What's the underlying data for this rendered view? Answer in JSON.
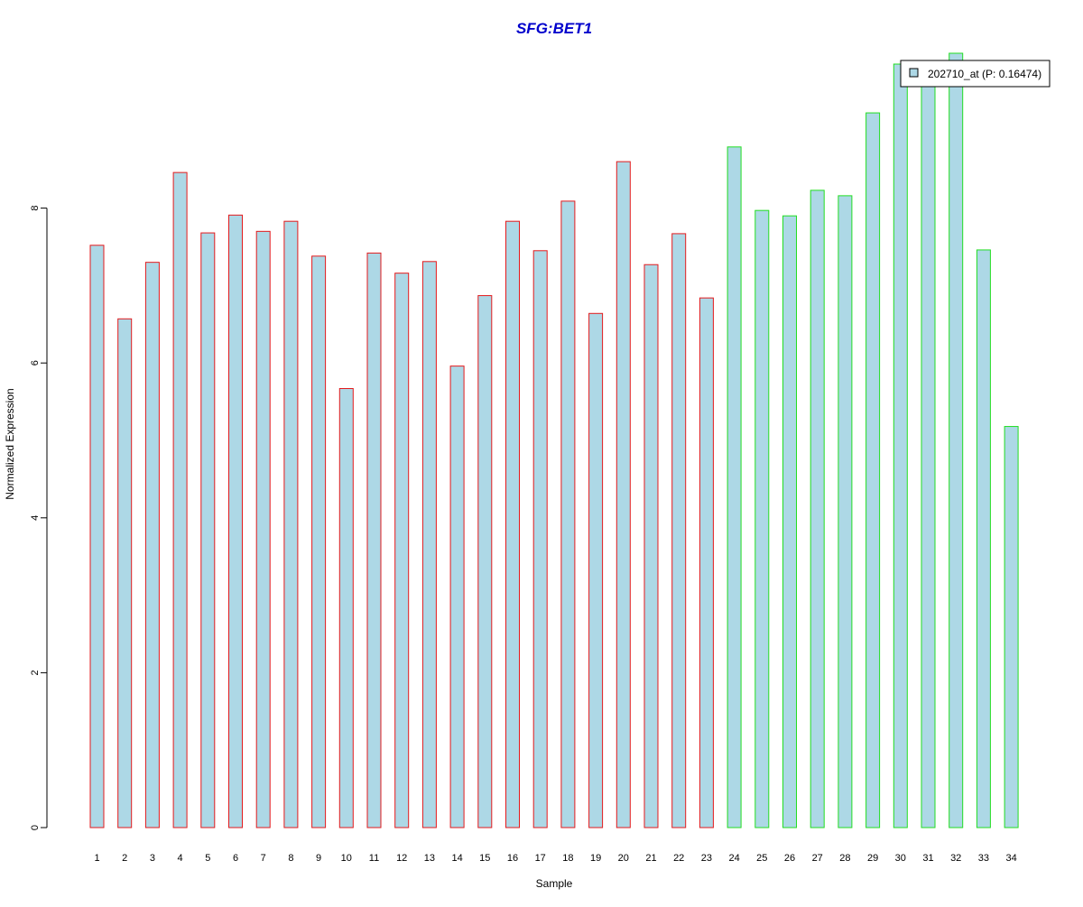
{
  "chart_data": {
    "type": "bar",
    "title": "SFG:BET1",
    "xlabel": "Sample",
    "ylabel": "Normalized Expression",
    "ylim": [
      0,
      10
    ],
    "yticks": [
      0,
      2,
      4,
      6,
      8
    ],
    "grid": false,
    "legend_position": "top-right",
    "categories": [
      "1",
      "2",
      "3",
      "4",
      "5",
      "6",
      "7",
      "8",
      "9",
      "10",
      "11",
      "12",
      "13",
      "14",
      "15",
      "16",
      "17",
      "18",
      "19",
      "20",
      "21",
      "22",
      "23",
      "24",
      "25",
      "26",
      "27",
      "28",
      "29",
      "30",
      "31",
      "32",
      "33",
      "34"
    ],
    "series": [
      {
        "name": "202710_at (P: 0.16474)",
        "values": [
          7.52,
          6.57,
          7.3,
          8.46,
          7.68,
          7.91,
          7.7,
          7.83,
          7.38,
          5.67,
          7.42,
          7.16,
          7.31,
          5.96,
          6.87,
          7.83,
          7.45,
          8.09,
          6.64,
          8.6,
          7.27,
          7.67,
          6.84,
          8.79,
          7.97,
          7.9,
          8.23,
          8.16,
          9.23,
          9.86,
          9.65,
          10.0,
          7.46,
          5.18
        ]
      }
    ],
    "group_of_sample": [
      "A",
      "A",
      "A",
      "A",
      "A",
      "A",
      "A",
      "A",
      "A",
      "A",
      "A",
      "A",
      "A",
      "A",
      "A",
      "A",
      "A",
      "A",
      "A",
      "A",
      "A",
      "A",
      "A",
      "B",
      "B",
      "B",
      "B",
      "B",
      "B",
      "B",
      "B",
      "B",
      "B",
      "B"
    ]
  },
  "colors": {
    "title": "#0000cc",
    "bar_fill": "#add8e6",
    "group_A_border": "#e31a1c",
    "group_B_border": "#22dd22",
    "axis": "#000000"
  }
}
